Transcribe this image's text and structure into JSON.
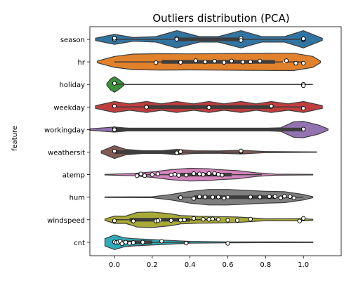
{
  "chart_data": {
    "type": "violin",
    "title": "Outliers distribution (PCA)",
    "xlabel": "",
    "ylabel": "feature",
    "xlim": [
      -0.13,
      1.2
    ],
    "xticks": [
      "0.0",
      "0.2",
      "0.4",
      "0.6",
      "0.8",
      "1.0"
    ],
    "xtick_values": [
      0,
      0.2,
      0.4,
      0.6,
      0.8,
      1.0
    ],
    "grid": false,
    "categories": [
      "season",
      "hr",
      "holiday",
      "weekday",
      "workingday",
      "weathersit",
      "atemp",
      "hum",
      "windspeed",
      "cnt"
    ],
    "series": [
      {
        "color": "#3274a1",
        "violin_range": [
          -0.1,
          1.1
        ],
        "density": [
          [
            -0.1,
            0.12
          ],
          [
            0,
            0.55
          ],
          [
            0.1,
            0.2
          ],
          [
            0.22,
            0.3
          ],
          [
            0.33,
            0.95
          ],
          [
            0.45,
            0.3
          ],
          [
            0.55,
            0.3
          ],
          [
            0.67,
            0.95
          ],
          [
            0.78,
            0.3
          ],
          [
            0.9,
            0.3
          ],
          [
            1,
            0.95
          ],
          [
            1.1,
            0.12
          ]
        ],
        "quartiles": [
          0.33,
          0.67
        ],
        "whiskers": [
          0.0,
          1.0
        ],
        "median": 0.67,
        "points": [
          0,
          0,
          0,
          0.33,
          0.33,
          0.67,
          0.67,
          0.67,
          1,
          1,
          1
        ]
      },
      {
        "color": "#e1812c",
        "violin_range": [
          -0.09,
          1.09
        ],
        "density": [
          [
            -0.09,
            0.1
          ],
          [
            0,
            0.6
          ],
          [
            0.1,
            0.85
          ],
          [
            0.25,
            0.9
          ],
          [
            0.4,
            0.88
          ],
          [
            0.55,
            0.9
          ],
          [
            0.7,
            0.92
          ],
          [
            0.85,
            0.95
          ],
          [
            0.95,
            0.95
          ],
          [
            1.05,
            0.6
          ],
          [
            1.09,
            0.1
          ]
        ],
        "quartiles": [
          0.25,
          0.85
        ],
        "whiskers": [
          0.0,
          1.0
        ],
        "median": 0.9,
        "points": [
          0.22,
          0.35,
          0.43,
          0.48,
          0.53,
          0.58,
          0.62,
          0.68,
          0.72,
          0.77,
          0.91,
          0.96,
          1.0
        ]
      },
      {
        "color": "#3a923a",
        "violin_range": [
          -0.04,
          0.05
        ],
        "density": [
          [
            -0.04,
            0.1
          ],
          [
            -0.02,
            0.6
          ],
          [
            0,
            0.85
          ],
          [
            0.02,
            0.6
          ],
          [
            0.05,
            0.1
          ]
        ],
        "quartiles": [
          0.0,
          0.0
        ],
        "whiskers": [
          0.0,
          1.05
        ],
        "median": 0.0,
        "points": [
          0.0,
          1.0,
          1.0
        ]
      },
      {
        "color": "#c03d3e",
        "violin_range": [
          -0.1,
          1.1
        ],
        "density": [
          [
            -0.1,
            0.15
          ],
          [
            0,
            0.6
          ],
          [
            0.08,
            0.35
          ],
          [
            0.17,
            0.6
          ],
          [
            0.25,
            0.35
          ],
          [
            0.33,
            0.6
          ],
          [
            0.42,
            0.35
          ],
          [
            0.5,
            0.6
          ],
          [
            0.58,
            0.35
          ],
          [
            0.67,
            0.6
          ],
          [
            0.75,
            0.35
          ],
          [
            0.83,
            0.6
          ],
          [
            0.92,
            0.35
          ],
          [
            1,
            0.6
          ],
          [
            1.1,
            0.15
          ]
        ],
        "quartiles": [
          0.17,
          0.83
        ],
        "whiskers": [
          0.0,
          1.0
        ],
        "median": 0.5,
        "points": [
          0,
          0.17,
          0.17,
          0.5,
          0.83,
          0.83,
          1
        ]
      },
      {
        "color": "#9372b2",
        "violin_range": [
          -0.13,
          1.13
        ],
        "density": [
          [
            -0.13,
            0.08
          ],
          [
            -0.05,
            0.2
          ],
          [
            0,
            0.28
          ],
          [
            0.1,
            0.1
          ],
          [
            0.3,
            0.05
          ],
          [
            0.7,
            0.05
          ],
          [
            0.88,
            0.2
          ],
          [
            0.95,
            0.85
          ],
          [
            1,
            0.9
          ],
          [
            1.08,
            0.5
          ],
          [
            1.13,
            0.08
          ]
        ],
        "quartiles": [
          0.0,
          1.0
        ],
        "whiskers": [
          0.0,
          1.0
        ],
        "median": 1.0,
        "points": [
          0,
          0,
          0,
          1
        ]
      },
      {
        "color": "#845b53",
        "violin_range": [
          -0.07,
          1.07
        ],
        "density": [
          [
            -0.07,
            0.1
          ],
          [
            0,
            0.7
          ],
          [
            0.06,
            0.3
          ],
          [
            0.15,
            0.15
          ],
          [
            0.25,
            0.15
          ],
          [
            0.33,
            0.3
          ],
          [
            0.42,
            0.15
          ],
          [
            0.55,
            0.12
          ],
          [
            0.67,
            0.2
          ],
          [
            0.8,
            0.06
          ],
          [
            1,
            0.03
          ],
          [
            1.07,
            0.02
          ]
        ],
        "quartiles": [
          0.0,
          0.33
        ],
        "whiskers": [
          0.0,
          0.67
        ],
        "median": 0.33,
        "points": [
          0,
          0.33,
          0.35,
          0.67,
          0.67
        ]
      },
      {
        "color": "#d684bd",
        "violin_range": [
          -0.05,
          1.05
        ],
        "density": [
          [
            -0.05,
            0.03
          ],
          [
            0.1,
            0.12
          ],
          [
            0.2,
            0.3
          ],
          [
            0.3,
            0.55
          ],
          [
            0.4,
            0.7
          ],
          [
            0.5,
            0.65
          ],
          [
            0.55,
            0.55
          ],
          [
            0.65,
            0.45
          ],
          [
            0.75,
            0.2
          ],
          [
            0.85,
            0.06
          ],
          [
            1.05,
            0.03
          ]
        ],
        "quartiles": [
          0.35,
          0.62
        ],
        "whiskers": [
          0.12,
          0.78
        ],
        "median": 0.45,
        "points": [
          0.12,
          0.14,
          0.16,
          0.2,
          0.23,
          0.3,
          0.32,
          0.34,
          0.38,
          0.42,
          0.45,
          0.47,
          0.5,
          0.53,
          0.55,
          0.57
        ]
      },
      {
        "color": "#7f7f7f",
        "violin_range": [
          -0.05,
          1.05
        ],
        "density": [
          [
            -0.05,
            0.03
          ],
          [
            0.2,
            0.05
          ],
          [
            0.3,
            0.3
          ],
          [
            0.4,
            0.65
          ],
          [
            0.5,
            0.85
          ],
          [
            0.6,
            0.85
          ],
          [
            0.7,
            0.75
          ],
          [
            0.8,
            0.65
          ],
          [
            0.9,
            0.6
          ],
          [
            1,
            0.3
          ],
          [
            1.05,
            0.05
          ]
        ],
        "quartiles": [
          0.42,
          0.85
        ],
        "whiskers": [
          0.33,
          1.0
        ],
        "median": 0.6,
        "points": [
          0.35,
          0.42,
          0.45,
          0.48,
          0.52,
          0.55,
          0.58,
          0.72,
          0.77,
          0.82,
          0.85,
          0.88,
          0.9,
          0.93,
          0.95
        ]
      },
      {
        "color": "#a9aa35",
        "violin_range": [
          -0.05,
          1.05
        ],
        "density": [
          [
            -0.05,
            0.08
          ],
          [
            0,
            0.4
          ],
          [
            0.06,
            0.4
          ],
          [
            0.12,
            0.8
          ],
          [
            0.2,
            0.85
          ],
          [
            0.3,
            0.65
          ],
          [
            0.35,
            0.45
          ],
          [
            0.45,
            0.38
          ],
          [
            0.55,
            0.35
          ],
          [
            0.65,
            0.3
          ],
          [
            0.8,
            0.1
          ],
          [
            1,
            0.12
          ],
          [
            1.05,
            0.05
          ]
        ],
        "quartiles": [
          0.08,
          0.4
        ],
        "whiskers": [
          0.0,
          0.55
        ],
        "median": 0.24,
        "points": [
          0.0,
          0.1,
          0.22,
          0.23,
          0.3,
          0.35,
          0.37,
          0.42,
          0.47,
          0.5,
          0.52,
          0.55,
          0.6,
          0.65,
          0.72,
          0.98,
          1.0
        ]
      },
      {
        "color": "#2eabb8",
        "violin_range": [
          -0.05,
          1.05
        ],
        "density": [
          [
            -0.05,
            0.4
          ],
          [
            0,
            0.8
          ],
          [
            0.05,
            0.5
          ],
          [
            0.1,
            0.4
          ],
          [
            0.2,
            0.3
          ],
          [
            0.3,
            0.2
          ],
          [
            0.4,
            0.1
          ],
          [
            0.6,
            0.05
          ],
          [
            1.05,
            0.03
          ]
        ],
        "quartiles": [
          0.0,
          0.2
        ],
        "whiskers": [
          0.0,
          0.4
        ],
        "median": 0.05,
        "points": [
          0,
          0.01,
          0.02,
          0.03,
          0.04,
          0.06,
          0.08,
          0.1,
          0.15,
          0.25,
          0.38,
          0.6
        ]
      }
    ]
  }
}
